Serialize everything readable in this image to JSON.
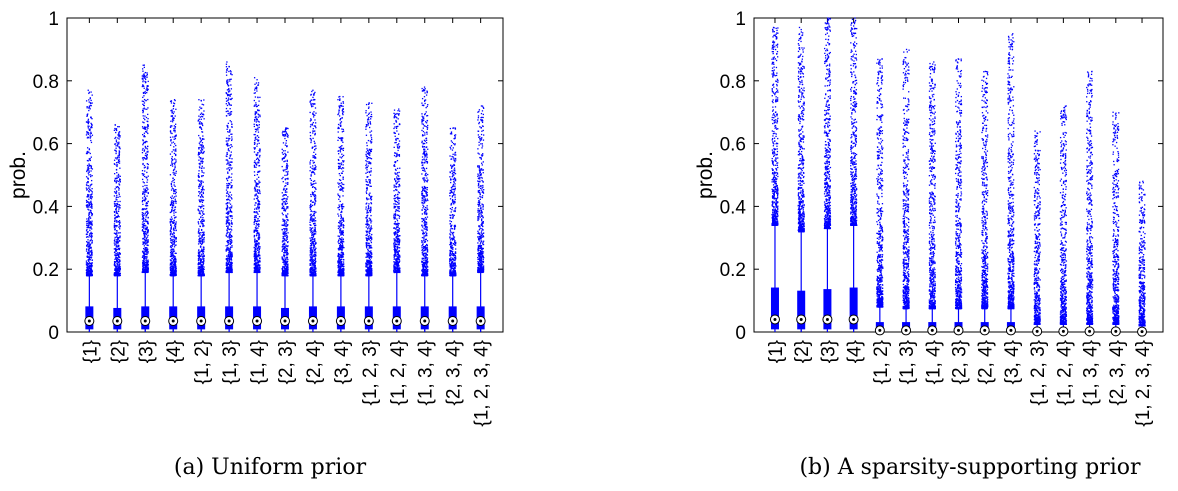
{
  "chart_data": [
    {
      "type": "boxplot",
      "caption": "(a)  Uniform prior",
      "ylabel": "prob.",
      "ylim": [
        0,
        1
      ],
      "yticks": [
        "0",
        "0.2",
        "0.4",
        "0.6",
        "0.8",
        "1"
      ],
      "categories": [
        "{1}",
        "{2}",
        "{3}",
        "{4}",
        "{1, 2}",
        "{1, 3}",
        "{1, 4}",
        "{2, 3}",
        "{2, 4}",
        "{3, 4}",
        "{1, 2, 3}",
        "{1, 2, 4}",
        "{1, 3, 4}",
        "{2, 3, 4}",
        "{1, 2, 3, 4}"
      ],
      "median": [
        0.035,
        0.035,
        0.035,
        0.035,
        0.035,
        0.035,
        0.035,
        0.035,
        0.035,
        0.035,
        0.035,
        0.035,
        0.035,
        0.035,
        0.035
      ],
      "q1": [
        0.01,
        0.01,
        0.01,
        0.01,
        0.01,
        0.01,
        0.01,
        0.01,
        0.01,
        0.01,
        0.01,
        0.01,
        0.01,
        0.01,
        0.01
      ],
      "q3": [
        0.08,
        0.075,
        0.08,
        0.08,
        0.08,
        0.08,
        0.08,
        0.075,
        0.08,
        0.08,
        0.08,
        0.08,
        0.08,
        0.08,
        0.08
      ],
      "whisker_low": [
        0,
        0,
        0,
        0,
        0,
        0,
        0,
        0,
        0,
        0,
        0,
        0,
        0,
        0,
        0
      ],
      "whisker_high": [
        0.18,
        0.18,
        0.19,
        0.18,
        0.18,
        0.19,
        0.19,
        0.18,
        0.18,
        0.18,
        0.18,
        0.19,
        0.18,
        0.18,
        0.19
      ],
      "outlier_max": [
        0.77,
        0.66,
        0.85,
        0.74,
        0.74,
        0.86,
        0.81,
        0.65,
        0.77,
        0.75,
        0.73,
        0.71,
        0.78,
        0.65,
        0.72
      ],
      "colors": {
        "box": "#0000ff",
        "median": "#000000",
        "outlier": "#0000ff"
      }
    },
    {
      "type": "boxplot",
      "caption": "(b) A sparsity-supporting prior",
      "ylabel": "prob.",
      "ylim": [
        0,
        1
      ],
      "yticks": [
        "0",
        "0.2",
        "0.4",
        "0.6",
        "0.8",
        "1"
      ],
      "categories": [
        "{1}",
        "{2}",
        "{3}",
        "{4}",
        "{1, 2}",
        "{1, 3}",
        "{1, 4}",
        "{2, 3}",
        "{2, 4}",
        "{3, 4}",
        "{1, 2, 3}",
        "{1, 2, 4}",
        "{1, 3, 4}",
        "{2, 3, 4}",
        "{1, 2, 3, 4}"
      ],
      "median": [
        0.04,
        0.04,
        0.04,
        0.04,
        0.005,
        0.005,
        0.005,
        0.005,
        0.005,
        0.005,
        0.002,
        0.002,
        0.002,
        0.002,
        0.001
      ],
      "q1": [
        0.01,
        0.01,
        0.01,
        0.01,
        0,
        0,
        0,
        0,
        0,
        0,
        0,
        0,
        0,
        0,
        0
      ],
      "q3": [
        0.14,
        0.13,
        0.135,
        0.14,
        0.03,
        0.03,
        0.03,
        0.03,
        0.03,
        0.03,
        0.01,
        0.01,
        0.01,
        0.01,
        0.01
      ],
      "whisker_low": [
        0,
        0,
        0,
        0,
        0,
        0,
        0,
        0,
        0,
        0,
        0,
        0,
        0,
        0,
        0
      ],
      "whisker_high": [
        0.34,
        0.32,
        0.33,
        0.34,
        0.08,
        0.075,
        0.075,
        0.075,
        0.075,
        0.075,
        0.025,
        0.025,
        0.025,
        0.025,
        0.02
      ],
      "outlier_max": [
        0.97,
        0.97,
        1.0,
        1.0,
        0.87,
        0.9,
        0.86,
        0.87,
        0.83,
        0.95,
        0.64,
        0.72,
        0.83,
        0.7,
        0.48
      ],
      "colors": {
        "box": "#0000ff",
        "median": "#000000",
        "outlier": "#0000ff"
      }
    }
  ]
}
